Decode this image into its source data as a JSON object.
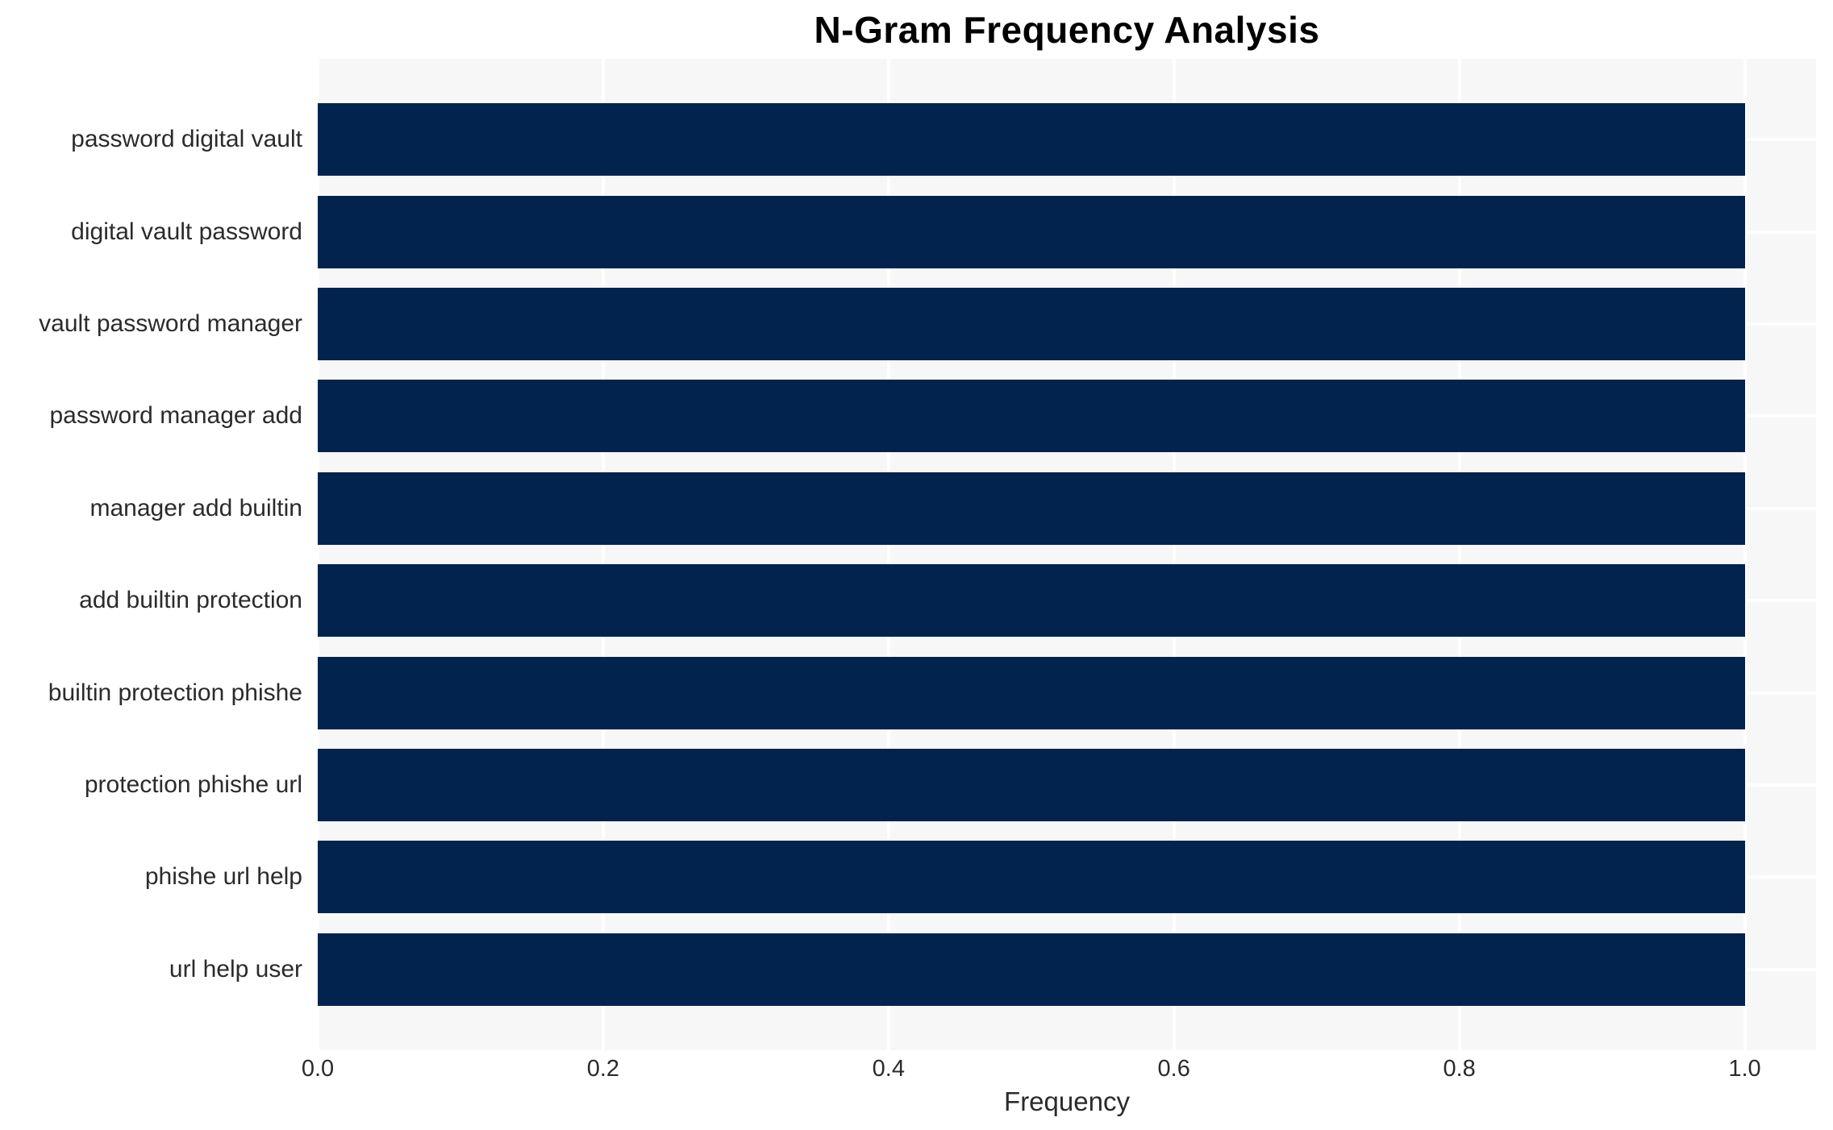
{
  "chart_data": {
    "type": "bar",
    "orientation": "horizontal",
    "title": "N-Gram Frequency Analysis",
    "xlabel": "Frequency",
    "ylabel": "",
    "categories": [
      "password digital vault",
      "digital vault password",
      "vault password manager",
      "password manager add",
      "manager add builtin",
      "add builtin protection",
      "builtin protection phishe",
      "protection phishe url",
      "phishe url help",
      "url help user"
    ],
    "values": [
      1.0,
      1.0,
      1.0,
      1.0,
      1.0,
      1.0,
      1.0,
      1.0,
      1.0,
      1.0
    ],
    "xlim": [
      0,
      1.05
    ],
    "xticks": [
      "0.0",
      "0.2",
      "0.4",
      "0.6",
      "0.8",
      "1.0"
    ],
    "xtick_values": [
      0.0,
      0.2,
      0.4,
      0.6,
      0.8,
      1.0
    ],
    "grid": true,
    "legend": false,
    "colors": {
      "bar": "#02234d",
      "plot_background": "#f7f7f8",
      "gridline": "#ffffff",
      "figure_background": "#ffffff",
      "title_text": "#000000",
      "tick_text": "#2b2b2b"
    }
  }
}
